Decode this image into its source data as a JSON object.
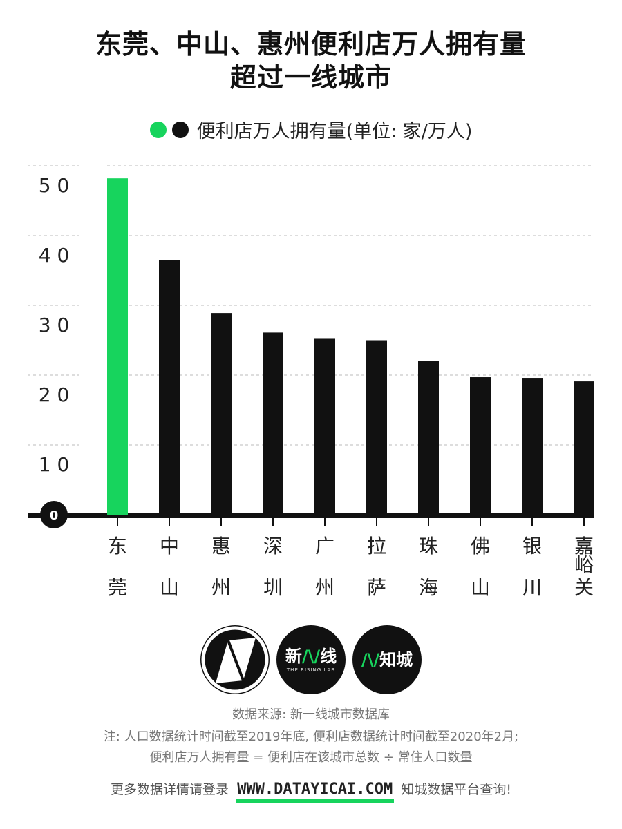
{
  "title": {
    "line1": "东莞、中山、惠州便利店万人拥有量",
    "line2": "超过一线城市"
  },
  "legend": {
    "label": "便利店万人拥有量(单位: 家/万人)",
    "colors": [
      "#17d45d",
      "#111111"
    ]
  },
  "chart_data": {
    "type": "bar",
    "categories": [
      "东莞",
      "中山",
      "惠州",
      "深圳",
      "广州",
      "拉萨",
      "珠海",
      "佛山",
      "银川",
      "嘉峪关"
    ],
    "values": [
      48.2,
      36.5,
      28.9,
      26.1,
      25.3,
      25.0,
      22.0,
      19.7,
      19.6,
      19.1
    ],
    "y_ticks": [
      "0",
      "1 0",
      "2 0",
      "3 0",
      "4 0",
      "5 0"
    ],
    "ylim": [
      0,
      50
    ],
    "grid": true,
    "highlight_color": "#17d45d",
    "bar_color": "#111111"
  },
  "logos": {
    "brand1_main": "新",
    "brand1_mark": "/\\/",
    "brand1_main2": "线",
    "brand1_sub": "THE RISING LAB",
    "brand2_mark": "/\\/",
    "brand2_main": "知城"
  },
  "footer": {
    "source": "数据来源: 新一线城市数据库",
    "note1": "注: 人口数据统计时间截至2019年底, 便利店数据统计时间截至2020年2月;",
    "note2": "便利店万人拥有量 = 便利店在该城市总数 ÷ 常住人口数量",
    "cta_before": "更多数据详情请登录",
    "cta_url": "WWW.DATAYICAI.COM",
    "cta_after": "知城数据平台查询!"
  }
}
